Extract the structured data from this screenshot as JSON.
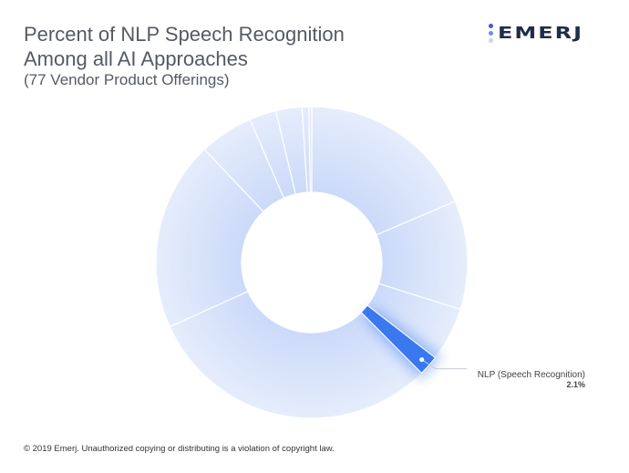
{
  "header": {
    "title_line1": "Percent of NLP Speech Recognition",
    "title_line2": "Among all AI Approaches",
    "subtitle": "(77 Vendor Product Offerings)"
  },
  "logo": {
    "text": "emerj",
    "dot_colors": [
      "#3b5bdb",
      "#6b8fe8",
      "#c7d4f5"
    ]
  },
  "footer": {
    "copyright": "© 2019 Emerj. Unauthorized copying or distributing is a violation of copyright law."
  },
  "chart_data": {
    "type": "pie",
    "donut": true,
    "values": [
      18.6,
      11.3,
      5.6,
      2.1,
      30.7,
      19.7,
      5.6,
      2.8,
      2.7,
      0.7,
      0.3
    ],
    "highlight_index": 3,
    "highlight_label": "NLP (Speech Recognition)",
    "highlight_value": "2.1%",
    "colors": {
      "base": "#dbe5fb",
      "highlight": "#3a78f0",
      "separator": "#ffffff"
    }
  }
}
